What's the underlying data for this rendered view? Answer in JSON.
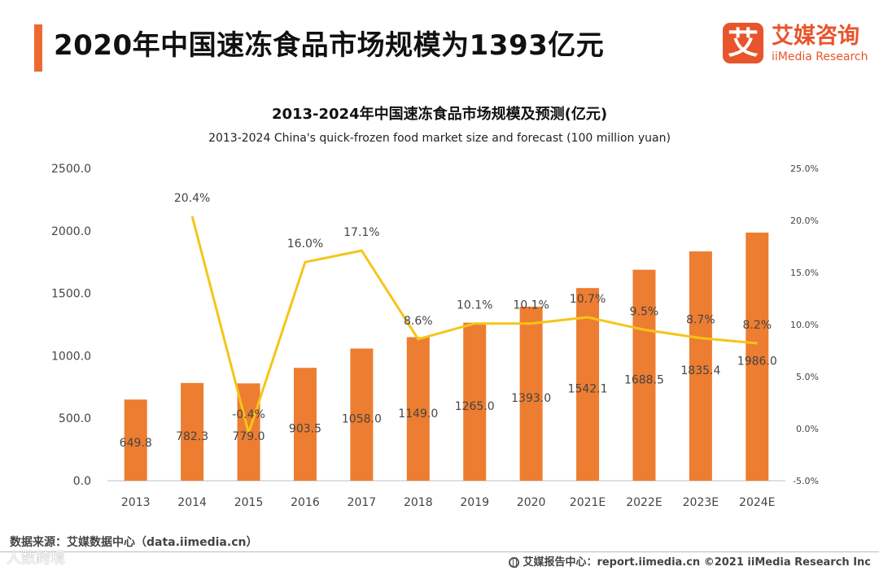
{
  "header": {
    "title": "2020年中国速冻食品市场规模为1393亿元",
    "accent_color": "#ED6A2F"
  },
  "logo": {
    "mark": "艾",
    "name_cn": "艾媒咨询",
    "name_en": "iiMedia Research",
    "color": "#E8542B"
  },
  "chart_data": {
    "type": "bar",
    "title": "2013-2024年中国速冻食品市场规模及预测(亿元)",
    "subtitle": "2013-2024 China's quick-frozen food market size and forecast (100 million yuan)",
    "categories": [
      "2013",
      "2014",
      "2015",
      "2016",
      "2017",
      "2018",
      "2019",
      "2020",
      "2021E",
      "2022E",
      "2023E",
      "2024E"
    ],
    "series": [
      {
        "type": "bar",
        "axis": "left",
        "color": "#ED7D31",
        "values": [
          649.8,
          782.3,
          779.0,
          903.5,
          1058.0,
          1149.0,
          1265.0,
          1393.0,
          1542.1,
          1688.5,
          1835.4,
          1986.0
        ],
        "labels": [
          "649.8",
          "782.3",
          "779.0",
          "903.5",
          "1058.0",
          "1149.0",
          "1265.0",
          "1393.0",
          "1542.1",
          "1688.5",
          "1835.4",
          "1986.0"
        ]
      },
      {
        "type": "line",
        "axis": "right",
        "color": "#F5C518",
        "values": [
          null,
          20.4,
          -0.4,
          16.0,
          17.1,
          8.6,
          10.1,
          10.1,
          10.7,
          9.5,
          8.7,
          8.2
        ],
        "labels": [
          "",
          "20.4%",
          "-0.4%",
          "16.0%",
          "17.1%",
          "8.6%",
          "10.1%",
          "10.1%",
          "10.7%",
          "9.5%",
          "8.7%",
          "8.2%"
        ]
      }
    ],
    "y_left": {
      "ylim": [
        0,
        2500
      ],
      "ticks": [
        0,
        500,
        1000,
        1500,
        2000,
        2500
      ],
      "tick_labels": [
        "0.0",
        "500.0",
        "1000.0",
        "1500.0",
        "2000.0",
        "2500.0"
      ]
    },
    "y_right": {
      "ylim": [
        -5,
        25
      ],
      "ticks": [
        -5,
        0,
        5,
        10,
        15,
        20,
        25
      ],
      "tick_labels": [
        "-5.0%",
        "0.0%",
        "5.0%",
        "10.0%",
        "15.0%",
        "20.0%",
        "25.0%"
      ]
    },
    "grid": false,
    "legend": "none"
  },
  "footer": {
    "source": "数据来源：艾媒数据中心（data.iimedia.cn）",
    "watermark": "人数跨境",
    "report": "艾媒报告中心：report.iimedia.cn   ©2021  iiMedia Research  Inc"
  }
}
